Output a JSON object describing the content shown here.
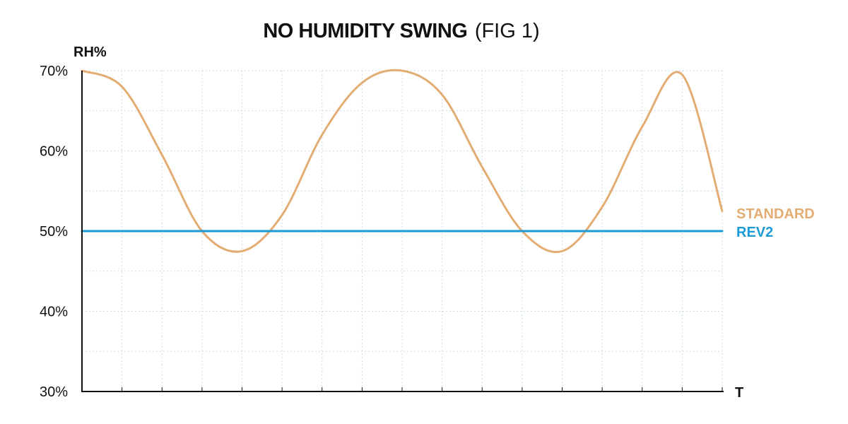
{
  "chart_data": {
    "type": "line",
    "title": "NO HUMIDITY SWING",
    "subtitle": "(FIG 1)",
    "xlabel": "T",
    "ylabel": "RH%",
    "ylim": [
      30,
      70
    ],
    "yticks": [
      70,
      60,
      50,
      40,
      30
    ],
    "ytick_labels": [
      "70%",
      "60%",
      "50%",
      "40%",
      "30%"
    ],
    "x": [
      0,
      1,
      2,
      3,
      4,
      5,
      6,
      7,
      8,
      9,
      10,
      11,
      12,
      13,
      14,
      15,
      16
    ],
    "grid": true,
    "legend": "right, at series end",
    "series": [
      {
        "name": "STANDARD",
        "color": "#e3ac73",
        "values": [
          70,
          68,
          59.5,
          50,
          47.5,
          52,
          62,
          68.5,
          70,
          67,
          58,
          50,
          47.5,
          53,
          63,
          69.5,
          52.5
        ]
      },
      {
        "name": "REV2",
        "color": "#1a9bd7",
        "values": [
          50,
          50,
          50,
          50,
          50,
          50,
          50,
          50,
          50,
          50,
          50,
          50,
          50,
          50,
          50,
          50,
          50
        ]
      }
    ]
  }
}
